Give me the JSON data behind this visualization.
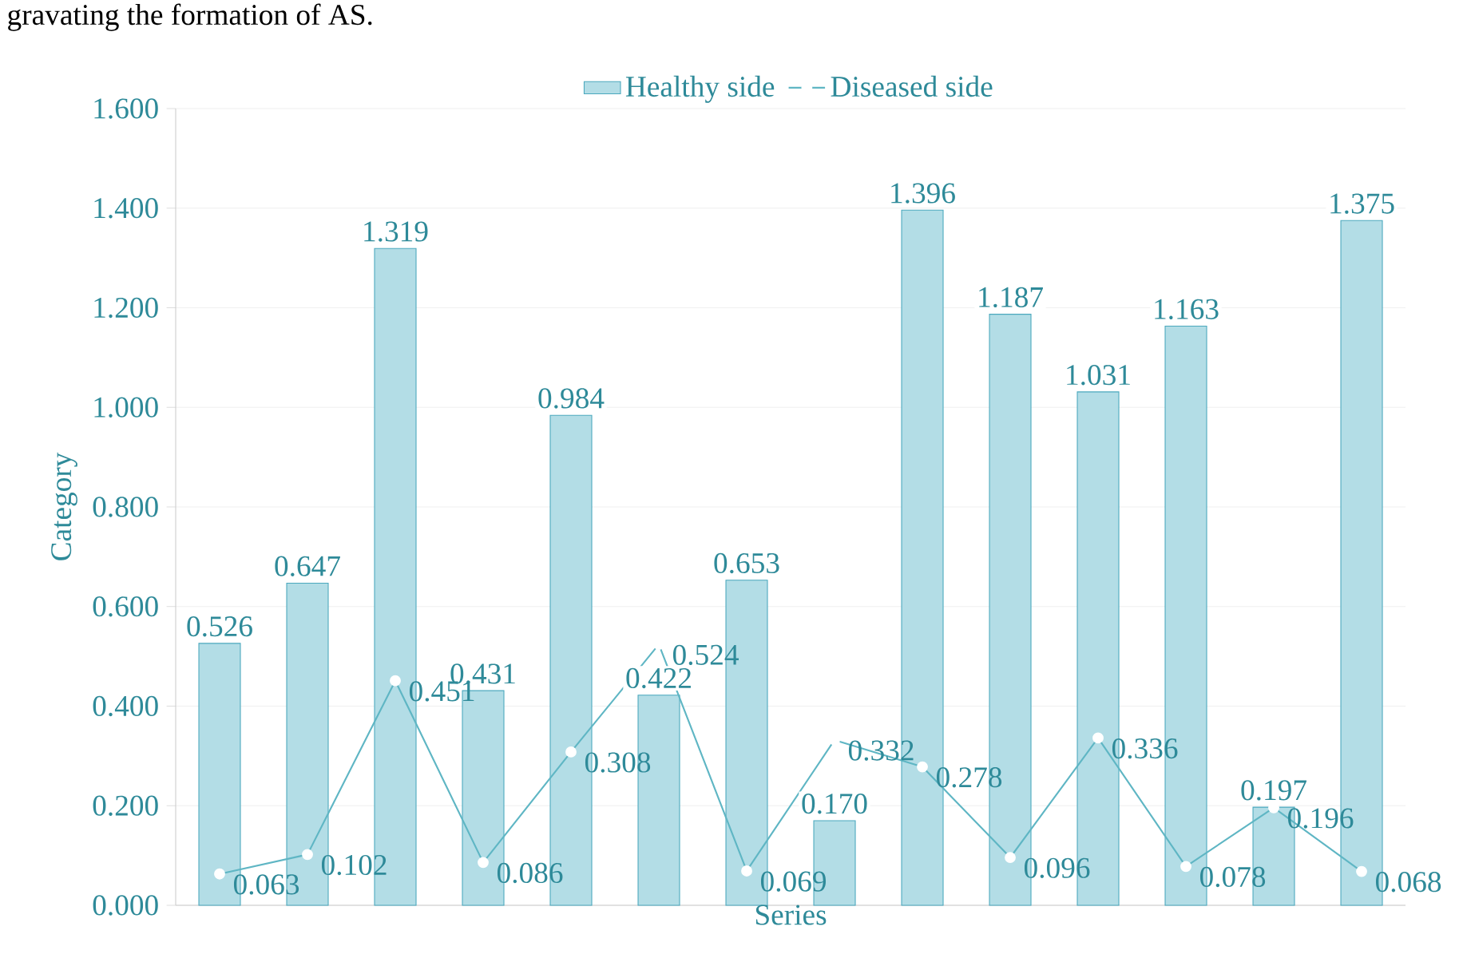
{
  "chart_data": {
    "type": "bar",
    "xlabel": "Series",
    "ylabel": "Category",
    "annotations": [
      "gravating the formation of AS."
    ],
    "categories": [
      null,
      null,
      null,
      null,
      null,
      null,
      null,
      null,
      null,
      null,
      null,
      null,
      null,
      null
    ],
    "series": [
      {
        "name": "Healthy side",
        "color": "#b3dde6",
        "values": [
          0.526,
          0.647,
          1.319,
          0.431,
          0.984,
          0.422,
          0.653,
          0.17,
          1.396,
          1.187,
          1.031,
          1.163,
          0.197,
          1.375
        ],
        "value_labels": [
          "0.526",
          "0.647",
          "1.319",
          "0.431",
          "0.984",
          "0.422",
          "0.653",
          "0.170",
          "1.396",
          "1.187",
          "1.031",
          "1.163",
          "0.197",
          "1.375"
        ]
      },
      {
        "name": "Diseased side",
        "type": "line",
        "color": "#5fb6c4",
        "marker": "circle",
        "values": [
          0.063,
          0.102,
          0.451,
          0.086,
          0.308,
          0.524,
          0.069,
          0.332,
          0.278,
          0.096,
          0.336,
          0.078,
          0.196,
          0.068
        ],
        "value_labels": [
          "0.063",
          "0.102",
          "0.451",
          "0.086",
          "0.308",
          "0.524",
          "0.069",
          "0.332",
          "0.278",
          "0.096",
          "0.336",
          "0.078",
          "0.196",
          "0.068"
        ]
      }
    ],
    "ylim": [
      0,
      1.6
    ],
    "yticks": [
      {
        "value": 0,
        "label": "0.000"
      },
      {
        "value": 0.2,
        "label": "0.200"
      },
      {
        "value": 0.4,
        "label": "0.400"
      },
      {
        "value": 0.6,
        "label": "0.600"
      },
      {
        "value": 0.8,
        "label": "0.800"
      },
      {
        "value": 1.0,
        "label": "1.000"
      },
      {
        "value": 1.2,
        "label": "1.200"
      },
      {
        "value": 1.4,
        "label": "1.400"
      },
      {
        "value": 1.6,
        "label": "1.600"
      }
    ],
    "grid": "y",
    "legend": "top"
  }
}
